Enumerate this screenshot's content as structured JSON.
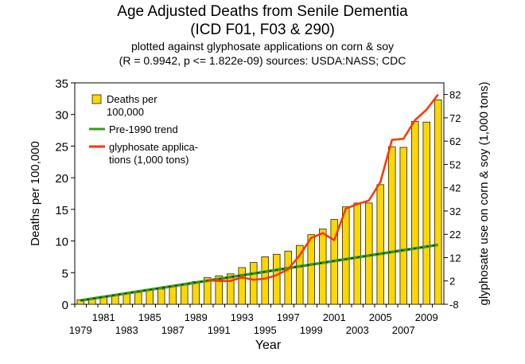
{
  "chart_data": {
    "type": "bar+line",
    "title": "Age Adjusted Deaths from Senile Dementia",
    "title_line2": "(ICD F01, F03 & 290)",
    "subtitle": "plotted against glyphosate applications on corn & soy",
    "subtitle_line2": "(R = 0.9942, p <= 1.822e-09) sources: USDA:NASS; CDC",
    "xlabel": "Year",
    "ylabel": "Deaths per 100,000",
    "ylabel_right": "glyphosate use on corn & soy (1,000 tons)",
    "ylim": [
      0,
      35
    ],
    "ylim_right": [
      -8,
      87
    ],
    "yticks": [
      0,
      5,
      10,
      15,
      20,
      25,
      30,
      35
    ],
    "yticks_right": [
      -8,
      2,
      12,
      22,
      32,
      42,
      52,
      62,
      72,
      82
    ],
    "xtick_labels_top": [
      "1981",
      "1985",
      "1989",
      "1993",
      "1997",
      "2001",
      "2005",
      "2009"
    ],
    "xtick_labels_bottom": [
      "1979",
      "1983",
      "1987",
      "1991",
      "1995",
      "1999",
      "2003",
      "2007"
    ],
    "years": [
      1979,
      1980,
      1981,
      1982,
      1983,
      1984,
      1985,
      1986,
      1987,
      1988,
      1989,
      1990,
      1991,
      1992,
      1993,
      1994,
      1995,
      1996,
      1997,
      1998,
      1999,
      2000,
      2001,
      2002,
      2003,
      2004,
      2005,
      2006,
      2007,
      2008,
      2009,
      2010
    ],
    "legend": [
      {
        "label": "Deaths per",
        "label2": "100,000",
        "color": "#ffd700"
      },
      {
        "label": "Pre-1990 trend",
        "color": "#3a9a1a"
      },
      {
        "label": "glyphosate applica-",
        "label2": "tions (1,000 tons)",
        "color": "#ff3300"
      }
    ],
    "series": [
      {
        "name": "Deaths per 100,000",
        "kind": "bar",
        "color": "#ffd700",
        "values": [
          0.7,
          0.9,
          1.1,
          1.4,
          1.7,
          1.9,
          2.2,
          2.4,
          2.8,
          3.2,
          3.6,
          4.2,
          4.5,
          4.8,
          5.8,
          6.6,
          7.5,
          7.9,
          8.4,
          9.3,
          11.0,
          11.9,
          13.4,
          15.4,
          16.0,
          16.0,
          18.9,
          24.9,
          24.8,
          28.9,
          28.8,
          32.3
        ]
      },
      {
        "name": "Pre-1990 trend",
        "kind": "line",
        "color": "#3a9a1a",
        "years": [
          1979,
          2010
        ],
        "values": [
          0.6,
          9.4
        ]
      },
      {
        "name": "glyphosate applications (1,000 tons)",
        "kind": "line",
        "color": "#ff3300",
        "axis": "right",
        "years": [
          1990,
          1991,
          1992,
          1993,
          1994,
          1995,
          1996,
          1997,
          1998,
          1999,
          2000,
          2001,
          2002,
          2003,
          2004,
          2005,
          2006,
          2007,
          2008,
          2009,
          2010
        ],
        "values": [
          2.3,
          2.0,
          2.0,
          3.5,
          2.5,
          3.0,
          4.5,
          7.0,
          13.0,
          20.5,
          22.5,
          19.5,
          33.0,
          35.0,
          36.5,
          44.5,
          62.5,
          63.0,
          71.0,
          75.5,
          82.0
        ]
      }
    ]
  }
}
